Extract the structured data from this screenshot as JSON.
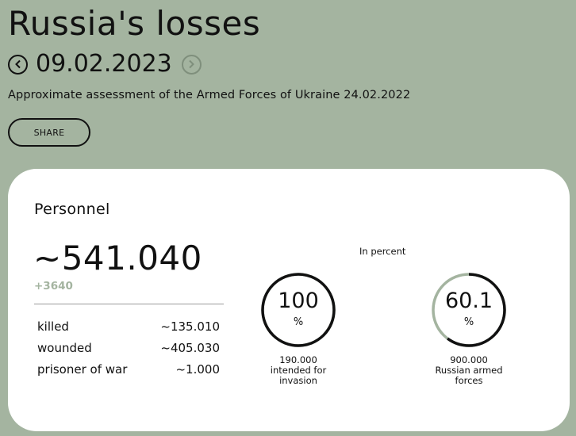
{
  "header": {
    "title": "Russia's losses",
    "date": "09.02.2023",
    "prev_icon": "chevron-left-icon",
    "next_icon": "chevron-right-icon",
    "subtitle": "Approximate assessment of the Armed Forces of Ukraine 24.02.2022",
    "share_label": "SHARE"
  },
  "card": {
    "title": "Personnel",
    "total": "~541.040",
    "delta": "+3640",
    "breakdown": [
      {
        "label": "killed",
        "value": "~135.010"
      },
      {
        "label": "wounded",
        "value": "~405.030"
      },
      {
        "label": "prisoner of war",
        "value": "~1.000"
      }
    ],
    "percent_label": "In percent",
    "gauges": [
      {
        "value": "100",
        "fraction": 1.0,
        "unit": "%",
        "caption_line1": "190.000",
        "caption_line2": "intended for",
        "caption_line3": "invasion"
      },
      {
        "value": "60.1",
        "fraction": 0.601,
        "unit": "%",
        "caption_line1": "900.000",
        "caption_line2": "Russian armed",
        "caption_line3": "forces"
      }
    ]
  },
  "colors": {
    "background": "#a4b4a0",
    "ring_fill": "#111111",
    "ring_track": "#a4b4a0",
    "delta": "#a4b4a0"
  }
}
